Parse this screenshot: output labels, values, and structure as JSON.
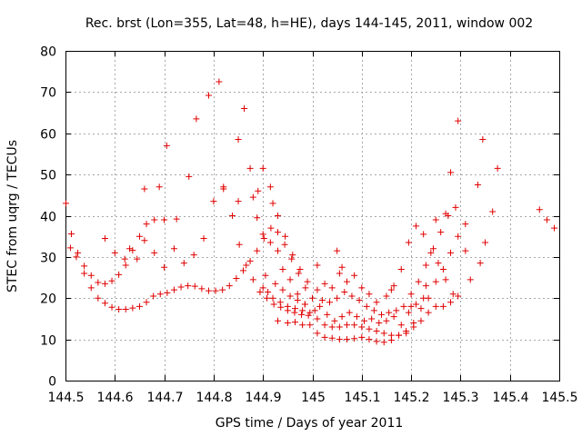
{
  "chart_data": {
    "type": "scatter",
    "title": "Rec. brst (Lon=355, Lat=48, h=HE), days 144-145, 2011, window 002",
    "xlabel": "GPS time / Days of year 2011",
    "ylabel": "STEC from uqrg / TECUs",
    "xlim": [
      144.5,
      145.5
    ],
    "ylim": [
      0,
      80
    ],
    "x_ticks": [
      144.5,
      144.6,
      144.7,
      144.8,
      144.9,
      145.0,
      145.1,
      145.2,
      145.3,
      145.4,
      145.5
    ],
    "x_tick_labels": [
      "144.5",
      "144.6",
      "144.7",
      "144.8",
      "144.9",
      "145",
      "145.1",
      "145.2",
      "145.3",
      "145.4",
      "145.5"
    ],
    "y_ticks": [
      0,
      10,
      20,
      30,
      40,
      50,
      60,
      70,
      80
    ],
    "y_tick_labels": [
      "0",
      "10",
      "20",
      "30",
      "40",
      "50",
      "60",
      "70",
      "80"
    ],
    "grid": true,
    "marker": "+",
    "marker_color": "#e00000",
    "series": [
      {
        "points": [
          [
            144.501,
            43.0
          ],
          [
            144.512,
            35.6
          ],
          [
            144.525,
            31.0
          ],
          [
            144.538,
            27.8
          ],
          [
            144.552,
            25.5
          ],
          [
            144.566,
            23.8
          ],
          [
            144.58,
            23.5
          ],
          [
            144.594,
            24.2
          ],
          [
            144.608,
            25.7
          ],
          [
            144.622,
            28.0
          ],
          [
            144.636,
            31.6
          ],
          [
            144.65,
            35.0
          ],
          [
            144.664,
            38.0
          ],
          [
            144.68,
            39.0
          ],
          [
            144.7,
            39.0
          ],
          [
            144.725,
            39.2
          ],
          [
            144.75,
            49.5
          ],
          [
            144.765,
            63.5
          ],
          [
            144.79,
            69.2
          ],
          [
            144.811,
            72.5
          ],
          [
            144.85,
            58.5
          ],
          [
            144.862,
            66.0
          ],
          [
            144.874,
            51.5
          ],
          [
            144.888,
            39.5
          ],
          [
            144.9,
            35.5
          ],
          [
            144.915,
            33.5
          ],
          [
            144.93,
            31.5
          ],
          [
            144.94,
            27.0
          ],
          [
            144.955,
            24.5
          ],
          [
            144.97,
            21.0
          ],
          [
            144.985,
            18.5
          ]
        ]
      },
      {
        "points": [
          [
            144.51,
            32.2
          ],
          [
            144.522,
            30.0
          ],
          [
            144.538,
            26.0
          ],
          [
            144.552,
            22.5
          ],
          [
            144.566,
            20.0
          ],
          [
            144.58,
            18.8
          ],
          [
            144.594,
            17.8
          ],
          [
            144.608,
            17.3
          ],
          [
            144.622,
            17.3
          ],
          [
            144.636,
            17.6
          ],
          [
            144.65,
            18.0
          ],
          [
            144.664,
            19.0
          ],
          [
            144.678,
            20.5
          ],
          [
            144.692,
            21.0
          ],
          [
            144.706,
            21.3
          ],
          [
            144.72,
            22.0
          ],
          [
            144.734,
            22.7
          ],
          [
            144.748,
            23.0
          ],
          [
            144.762,
            22.9
          ],
          [
            144.776,
            22.3
          ],
          [
            144.79,
            21.8
          ],
          [
            144.804,
            21.8
          ],
          [
            144.818,
            22.0
          ],
          [
            144.832,
            23.0
          ],
          [
            144.846,
            24.8
          ],
          [
            144.86,
            26.7
          ],
          [
            144.874,
            29.0
          ],
          [
            144.888,
            31.5
          ],
          [
            144.902,
            34.5
          ],
          [
            144.916,
            37.0
          ],
          [
            144.93,
            36.0
          ],
          [
            144.944,
            33.0
          ],
          [
            144.958,
            29.5
          ],
          [
            144.972,
            26.0
          ],
          [
            144.986,
            22.5
          ]
        ]
      },
      {
        "points": [
          [
            144.58,
            34.5
          ],
          [
            144.6,
            31.0
          ],
          [
            144.62,
            29.5
          ],
          [
            144.63,
            32.0
          ],
          [
            144.645,
            29.5
          ],
          [
            144.66,
            34.0
          ],
          [
            144.68,
            31.0
          ],
          [
            144.7,
            27.5
          ],
          [
            144.72,
            32.0
          ],
          [
            144.74,
            28.5
          ],
          [
            144.76,
            30.5
          ],
          [
            144.78,
            34.5
          ],
          [
            144.8,
            43.5
          ],
          [
            144.82,
            47.0
          ],
          [
            144.838,
            40.0
          ],
          [
            144.852,
            33.0
          ],
          [
            144.866,
            28.0
          ],
          [
            144.88,
            24.5
          ],
          [
            144.894,
            21.5
          ],
          [
            144.908,
            20.0
          ],
          [
            144.922,
            18.5
          ],
          [
            144.936,
            17.8
          ],
          [
            144.95,
            17.0
          ],
          [
            144.964,
            16.5
          ],
          [
            144.978,
            16.0
          ],
          [
            144.992,
            15.8
          ]
        ]
      },
      {
        "points": [
          [
            144.66,
            46.5
          ],
          [
            144.69,
            47.0
          ],
          [
            144.705,
            57.0
          ],
          [
            144.82,
            46.5
          ],
          [
            144.85,
            43.5
          ],
          [
            144.88,
            44.5
          ],
          [
            144.89,
            46.0
          ],
          [
            144.9,
            51.5
          ],
          [
            144.915,
            47.0
          ],
          [
            144.92,
            43.0
          ],
          [
            144.93,
            40.0
          ],
          [
            144.945,
            35.0
          ],
          [
            144.96,
            30.5
          ],
          [
            144.975,
            27.0
          ],
          [
            144.99,
            24.0
          ]
        ]
      },
      {
        "points": [
          [
            144.9,
            22.5
          ],
          [
            144.91,
            21.5
          ],
          [
            144.92,
            20.0
          ],
          [
            144.935,
            19.0
          ],
          [
            144.95,
            18.0
          ],
          [
            144.965,
            17.5
          ],
          [
            144.98,
            17.0
          ],
          [
            144.995,
            16.5
          ],
          [
            144.905,
            25.5
          ],
          [
            144.925,
            23.5
          ],
          [
            144.94,
            22.0
          ],
          [
            144.955,
            20.5
          ],
          [
            144.97,
            19.5
          ],
          [
            144.985,
            18.5
          ],
          [
            144.93,
            14.5
          ],
          [
            144.95,
            14.0
          ],
          [
            144.965,
            14.2
          ],
          [
            144.98,
            13.5
          ],
          [
            144.995,
            13.5
          ]
        ]
      },
      {
        "points": [
          [
            145.01,
            11.5
          ],
          [
            145.025,
            10.5
          ],
          [
            145.04,
            10.3
          ],
          [
            145.055,
            10.0
          ],
          [
            145.07,
            10.0
          ],
          [
            145.085,
            10.2
          ],
          [
            145.1,
            10.5
          ],
          [
            145.115,
            10.0
          ],
          [
            145.13,
            9.5
          ],
          [
            145.145,
            9.3
          ],
          [
            145.16,
            9.8
          ],
          [
            145.175,
            11.0
          ],
          [
            145.19,
            11.5
          ],
          [
            145.205,
            13.0
          ],
          [
            145.22,
            14.5
          ],
          [
            145.235,
            16.5
          ],
          [
            145.25,
            18.0
          ],
          [
            145.265,
            18.0
          ],
          [
            145.28,
            19.0
          ],
          [
            145.295,
            20.5
          ]
        ]
      },
      {
        "points": [
          [
            145.01,
            15.0
          ],
          [
            145.025,
            13.5
          ],
          [
            145.04,
            13.0
          ],
          [
            145.055,
            13.0
          ],
          [
            145.07,
            13.5
          ],
          [
            145.085,
            13.5
          ],
          [
            145.1,
            13.0
          ],
          [
            145.115,
            12.5
          ],
          [
            145.13,
            12.0
          ],
          [
            145.145,
            11.5
          ],
          [
            145.16,
            11.0
          ],
          [
            145.175,
            11.0
          ],
          [
            145.19,
            12.0
          ],
          [
            145.205,
            14.0
          ],
          [
            145.22,
            17.5
          ],
          [
            145.235,
            20.0
          ],
          [
            145.25,
            24.0
          ],
          [
            145.265,
            27.0
          ],
          [
            145.28,
            31.0
          ],
          [
            145.295,
            35.0
          ],
          [
            145.31,
            38.0
          ]
        ]
      },
      {
        "points": [
          [
            145.005,
            17.0
          ],
          [
            145.02,
            19.5
          ],
          [
            145.035,
            19.0
          ],
          [
            145.05,
            20.0
          ],
          [
            145.065,
            21.5
          ],
          [
            145.08,
            20.5
          ],
          [
            145.095,
            19.5
          ],
          [
            145.11,
            18.0
          ],
          [
            145.125,
            17.0
          ],
          [
            145.14,
            16.0
          ],
          [
            145.155,
            16.5
          ],
          [
            145.17,
            17.0
          ],
          [
            145.185,
            18.0
          ],
          [
            145.2,
            21.0
          ],
          [
            145.215,
            24.0
          ],
          [
            145.23,
            28.0
          ],
          [
            145.245,
            32.0
          ],
          [
            145.26,
            36.0
          ],
          [
            145.275,
            40.0
          ],
          [
            145.29,
            42.0
          ]
        ]
      },
      {
        "points": [
          [
            145.01,
            22.0
          ],
          [
            145.025,
            23.5
          ],
          [
            145.04,
            22.5
          ],
          [
            145.055,
            26.0
          ],
          [
            145.07,
            24.0
          ],
          [
            145.085,
            25.5
          ],
          [
            145.1,
            22.5
          ],
          [
            145.115,
            21.0
          ],
          [
            145.13,
            19.0
          ],
          [
            145.15,
            20.5
          ],
          [
            145.165,
            23.0
          ],
          [
            145.18,
            27.0
          ],
          [
            145.195,
            33.5
          ],
          [
            145.21,
            37.5
          ],
          [
            145.225,
            35.5
          ],
          [
            145.24,
            31.0
          ],
          [
            145.255,
            28.5
          ],
          [
            145.27,
            24.5
          ],
          [
            145.285,
            21.0
          ]
        ]
      },
      {
        "points": [
          [
            145.01,
            28.0
          ],
          [
            145.05,
            31.5
          ],
          [
            145.06,
            27.5
          ],
          [
            145.16,
            22.0
          ],
          [
            145.2,
            18.0
          ],
          [
            145.23,
            23.0
          ],
          [
            145.25,
            39.0
          ],
          [
            145.27,
            40.5
          ],
          [
            145.28,
            50.5
          ],
          [
            145.295,
            63.0
          ],
          [
            145.31,
            31.5
          ],
          [
            145.32,
            24.5
          ],
          [
            145.335,
            47.5
          ],
          [
            145.345,
            58.5
          ],
          [
            145.35,
            33.5
          ],
          [
            145.365,
            41.0
          ],
          [
            145.375,
            51.5
          ],
          [
            145.34,
            28.5
          ],
          [
            145.46,
            41.5
          ],
          [
            145.475,
            39.0
          ],
          [
            145.49,
            37.0
          ]
        ]
      },
      {
        "points": [
          [
            145.0,
            20.0
          ],
          [
            145.015,
            18.0
          ],
          [
            145.03,
            16.0
          ],
          [
            145.045,
            14.5
          ],
          [
            145.06,
            15.5
          ],
          [
            145.075,
            16.5
          ],
          [
            145.09,
            15.5
          ],
          [
            145.105,
            14.5
          ],
          [
            145.12,
            15.0
          ],
          [
            145.135,
            14.0
          ],
          [
            145.15,
            14.5
          ],
          [
            145.165,
            15.5
          ],
          [
            145.18,
            13.5
          ],
          [
            145.195,
            16.5
          ],
          [
            145.21,
            18.5
          ],
          [
            145.225,
            20.0
          ]
        ]
      }
    ]
  }
}
